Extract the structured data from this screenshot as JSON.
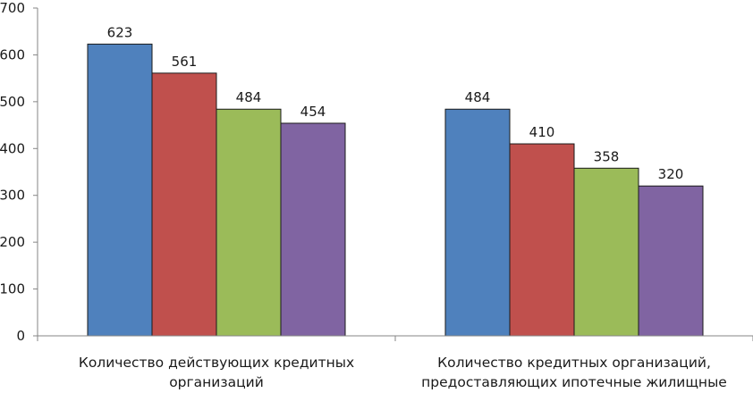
{
  "chart_data": {
    "type": "bar",
    "title": "",
    "xlabel": "",
    "ylabel": "",
    "ylim": [
      0,
      700
    ],
    "yticks": [
      "0",
      "100",
      "200",
      "300",
      "400",
      "500",
      "600",
      "700"
    ],
    "grid": false,
    "legend": "none",
    "categories": [
      [
        "Количество действующих кредитных",
        "организаций"
      ],
      [
        "Количество кредитных организаций,",
        "предоставляющих ипотечные жилищные"
      ]
    ],
    "series": [
      {
        "color": "#4f81bd",
        "values": [
          623,
          484
        ]
      },
      {
        "color": "#c0504d",
        "values": [
          561,
          410
        ]
      },
      {
        "color": "#9bbb59",
        "values": [
          484,
          358
        ]
      },
      {
        "color": "#8064a2",
        "values": [
          454,
          320
        ]
      }
    ]
  }
}
